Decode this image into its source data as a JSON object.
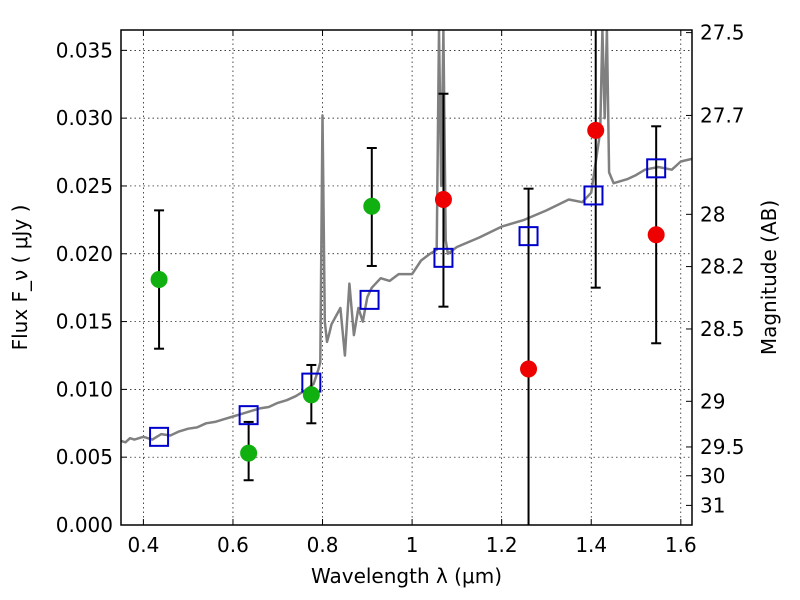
{
  "chart_data": {
    "type": "scatter",
    "xlabel": "Wavelength  λ (μm)",
    "ylabel": "Flux  F_ν  ( μJy )",
    "y2label": "Magnitude (AB)",
    "xlim": [
      0.35,
      1.625
    ],
    "ylim": [
      0.0,
      0.0365
    ],
    "grid": true,
    "x_ticks": [
      {
        "value": 0.4,
        "label": "0.4"
      },
      {
        "value": 0.6,
        "label": "0.6"
      },
      {
        "value": 0.8,
        "label": "0.8"
      },
      {
        "value": 1.0,
        "label": "1"
      },
      {
        "value": 1.2,
        "label": "1.2"
      },
      {
        "value": 1.4,
        "label": "1.4"
      },
      {
        "value": 1.6,
        "label": "1.6"
      }
    ],
    "y_ticks": [
      {
        "value": 0.0,
        "label": "0.000"
      },
      {
        "value": 0.005,
        "label": "0.005"
      },
      {
        "value": 0.01,
        "label": "0.010"
      },
      {
        "value": 0.015,
        "label": "0.015"
      },
      {
        "value": 0.02,
        "label": "0.020"
      },
      {
        "value": 0.025,
        "label": "0.025"
      },
      {
        "value": 0.03,
        "label": "0.030"
      },
      {
        "value": 0.035,
        "label": "0.035"
      }
    ],
    "y2_ticks": [
      {
        "value": 27.5,
        "label": "27.5"
      },
      {
        "value": 27.7,
        "label": "27.7"
      },
      {
        "value": 28.0,
        "label": "28"
      },
      {
        "value": 28.2,
        "label": "28.2"
      },
      {
        "value": 28.5,
        "label": "28.5"
      },
      {
        "value": 29.0,
        "label": "29"
      },
      {
        "value": 29.5,
        "label": "29.5"
      },
      {
        "value": 30.0,
        "label": "30"
      },
      {
        "value": 31.0,
        "label": "31"
      }
    ],
    "model_spectrum": {
      "color": "#808080",
      "x": [
        0.35,
        0.36,
        0.37,
        0.38,
        0.4,
        0.42,
        0.44,
        0.46,
        0.48,
        0.5,
        0.52,
        0.54,
        0.56,
        0.58,
        0.6,
        0.62,
        0.64,
        0.66,
        0.68,
        0.7,
        0.72,
        0.74,
        0.76,
        0.78,
        0.79,
        0.795,
        0.8,
        0.805,
        0.81,
        0.815,
        0.82,
        0.84,
        0.85,
        0.86,
        0.87,
        0.88,
        0.89,
        0.9,
        0.91,
        0.93,
        0.95,
        0.97,
        1.0,
        1.02,
        1.04,
        1.055,
        1.06,
        1.065,
        1.07,
        1.075,
        1.08,
        1.1,
        1.15,
        1.2,
        1.25,
        1.3,
        1.35,
        1.38,
        1.4,
        1.42,
        1.425,
        1.43,
        1.435,
        1.44,
        1.45,
        1.48,
        1.5,
        1.52,
        1.55,
        1.58,
        1.6,
        1.625
      ],
      "y": [
        0.0062,
        0.0061,
        0.0064,
        0.0063,
        0.0065,
        0.0063,
        0.0067,
        0.0066,
        0.0069,
        0.0071,
        0.0072,
        0.0075,
        0.0076,
        0.0078,
        0.008,
        0.0082,
        0.0084,
        0.0086,
        0.0087,
        0.009,
        0.0092,
        0.0095,
        0.0099,
        0.0104,
        0.0114,
        0.012,
        0.0302,
        0.015,
        0.0135,
        0.0141,
        0.0148,
        0.016,
        0.0125,
        0.0178,
        0.014,
        0.016,
        0.015,
        0.0168,
        0.0175,
        0.0182,
        0.018,
        0.0185,
        0.0185,
        0.0195,
        0.02,
        0.0203,
        0.0365,
        0.025,
        0.0365,
        0.021,
        0.02,
        0.0205,
        0.0212,
        0.022,
        0.0225,
        0.0232,
        0.024,
        0.0238,
        0.0245,
        0.029,
        0.0365,
        0.03,
        0.0365,
        0.026,
        0.0252,
        0.0255,
        0.0258,
        0.0262,
        0.0264,
        0.0262,
        0.0268,
        0.027
      ]
    },
    "model_photometry": {
      "color": "#0000cc",
      "x": [
        0.435,
        0.635,
        0.775,
        0.905,
        1.07,
        1.26,
        1.405,
        1.545
      ],
      "y": [
        0.0065,
        0.0081,
        0.0105,
        0.0166,
        0.0197,
        0.0213,
        0.0243,
        0.0263
      ]
    },
    "observed": [
      {
        "x": 0.435,
        "y": 0.0181,
        "err_lo": 0.013,
        "err_hi": 0.0232,
        "color": "#10b010"
      },
      {
        "x": 0.635,
        "y": 0.0053,
        "err_lo": 0.0033,
        "err_hi": 0.0076,
        "color": "#10b010"
      },
      {
        "x": 0.775,
        "y": 0.0096,
        "err_lo": 0.0075,
        "err_hi": 0.0118,
        "color": "#10b010"
      },
      {
        "x": 0.91,
        "y": 0.0235,
        "err_lo": 0.0191,
        "err_hi": 0.0278,
        "color": "#10b010"
      },
      {
        "x": 1.07,
        "y": 0.024,
        "err_lo": 0.0161,
        "err_hi": 0.0318,
        "color": "#ee0000"
      },
      {
        "x": 1.26,
        "y": 0.0115,
        "err_lo": 0.0,
        "err_hi": 0.0248,
        "color": "#ee0000"
      },
      {
        "x": 1.41,
        "y": 0.0291,
        "err_lo": 0.0175,
        "err_hi": 0.0365,
        "color": "#ee0000"
      },
      {
        "x": 1.545,
        "y": 0.0214,
        "err_lo": 0.0134,
        "err_hi": 0.0294,
        "color": "#ee0000"
      }
    ]
  }
}
